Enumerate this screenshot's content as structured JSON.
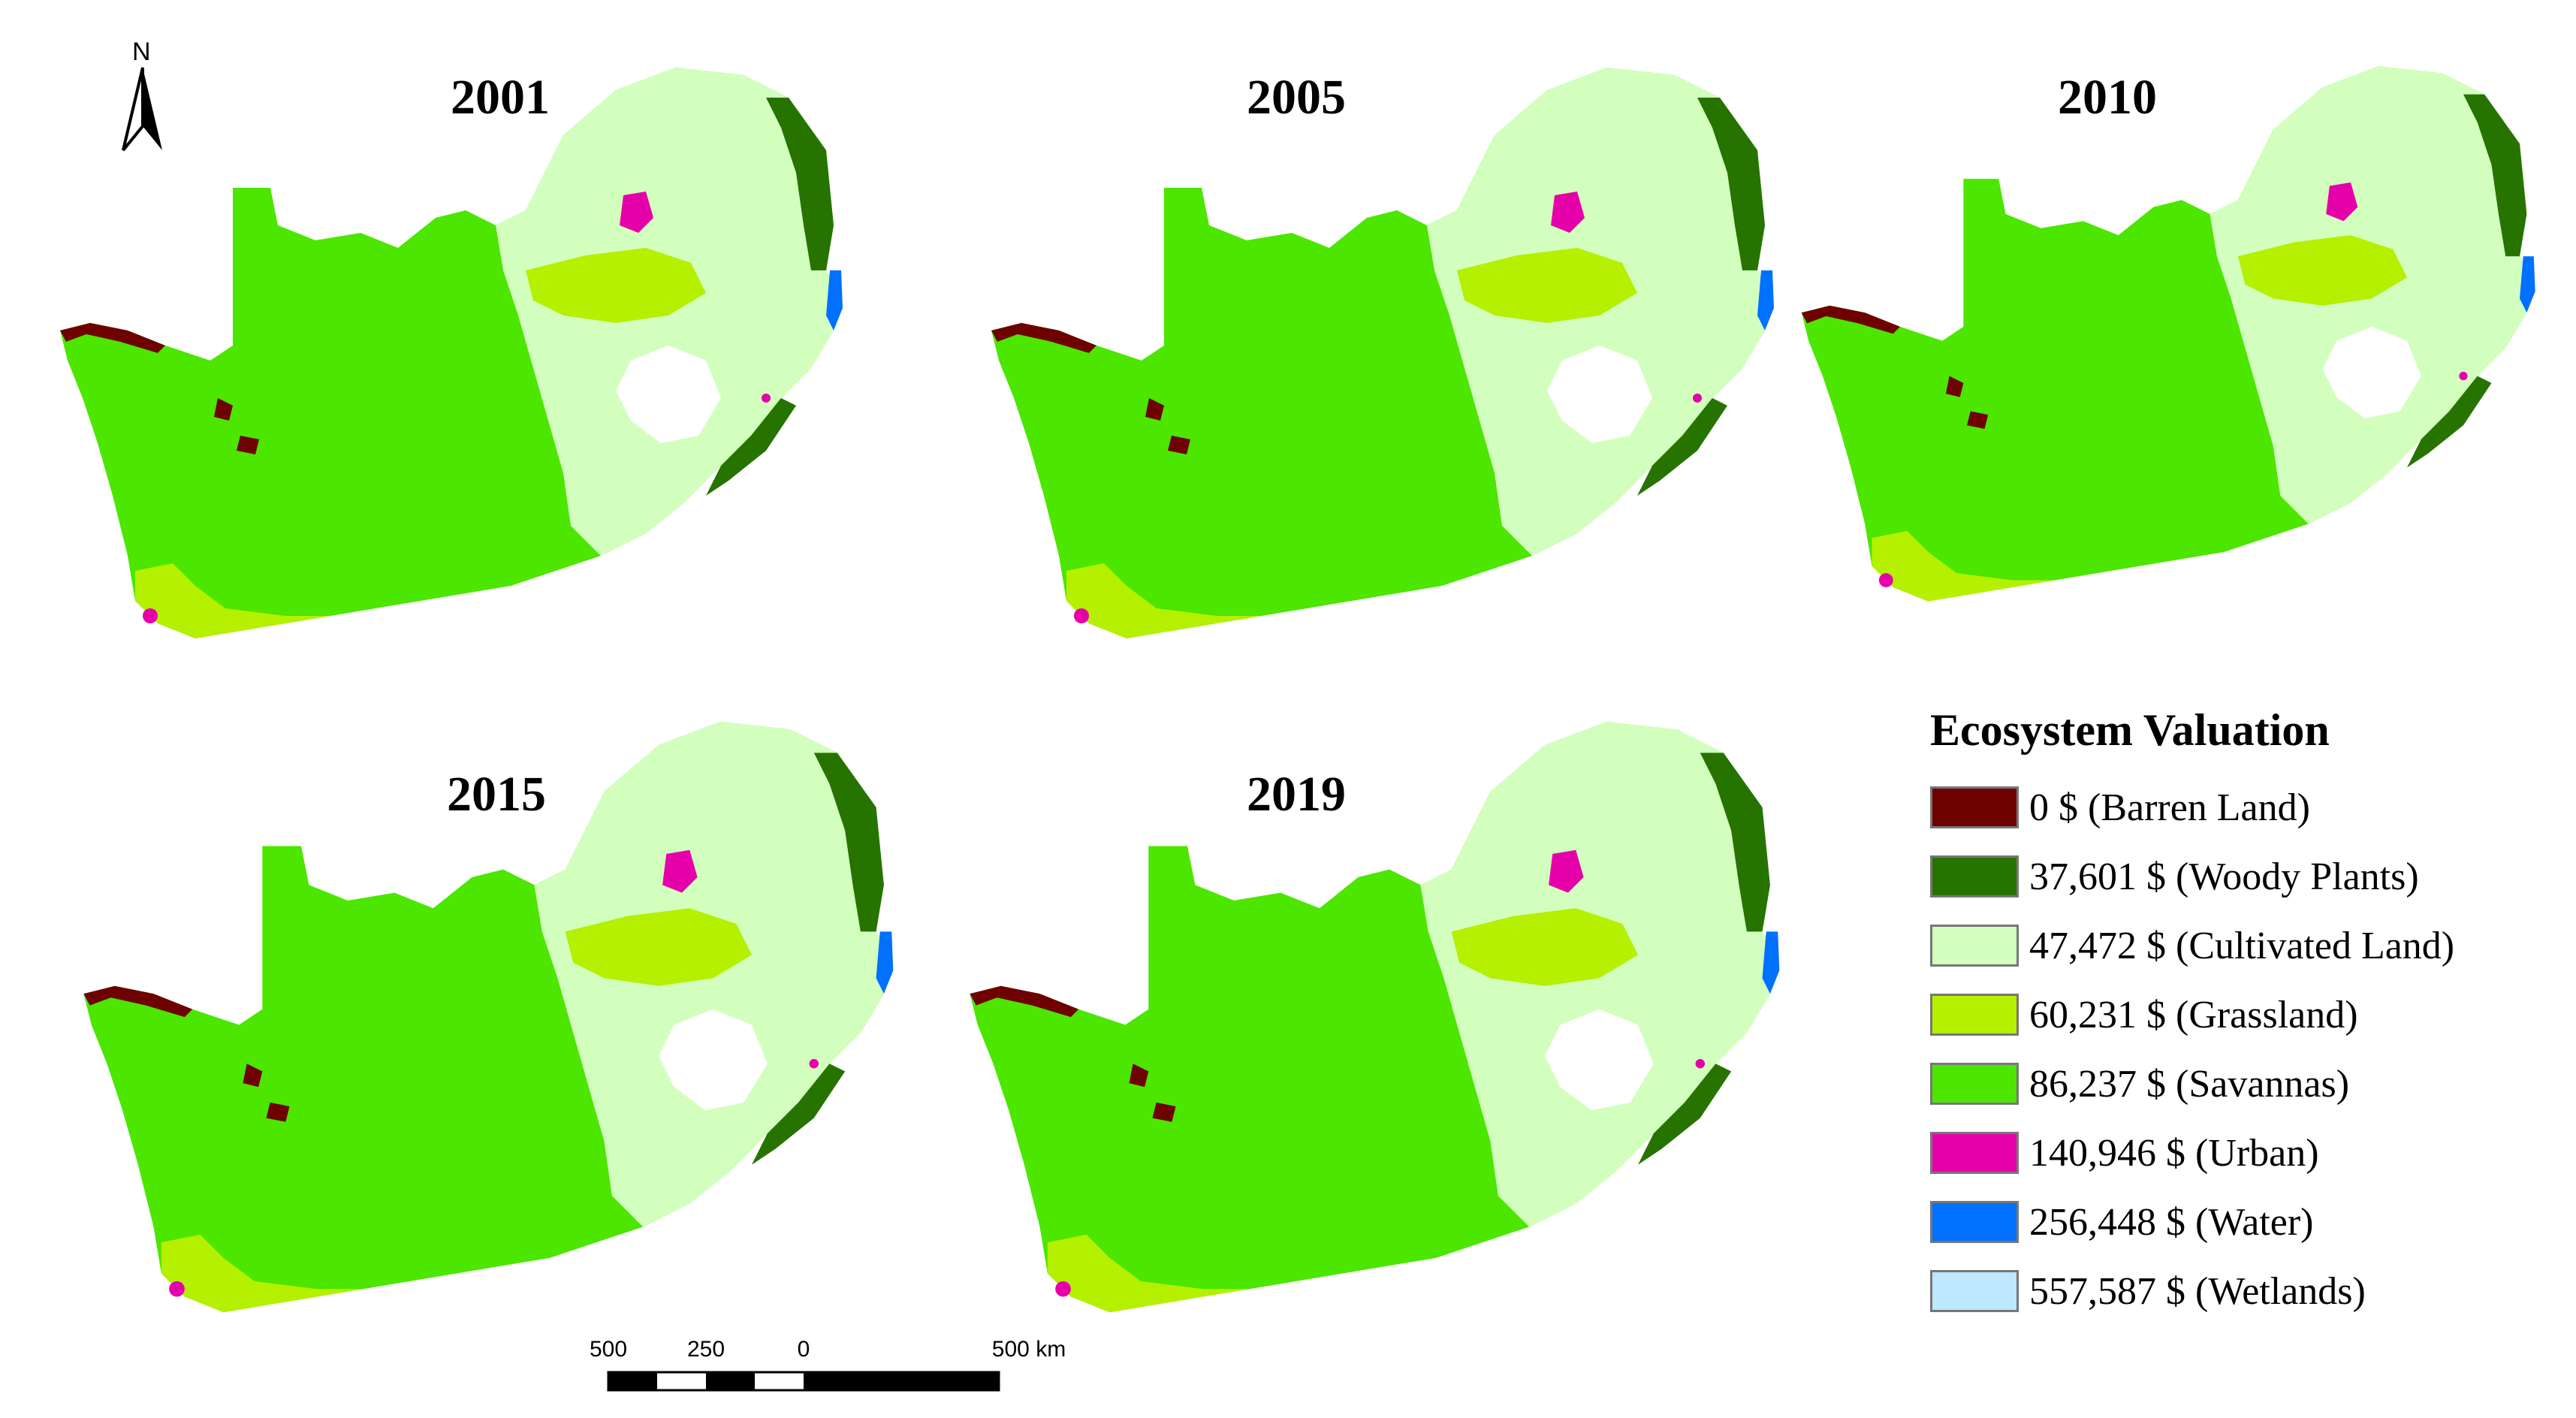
{
  "north": {
    "letter": "N",
    "icon": "north-arrow-icon"
  },
  "maps": [
    {
      "year": "2001"
    },
    {
      "year": "2005"
    },
    {
      "year": "2010"
    },
    {
      "year": "2015"
    },
    {
      "year": "2019"
    }
  ],
  "legend": {
    "title": "Ecosystem Valuation",
    "items": [
      {
        "label": "0 $ (Barren Land)",
        "color": "#6e0000"
      },
      {
        "label": "37,601 $ (Woody Plants)",
        "color": "#267300"
      },
      {
        "label": "47,472 $ (Cultivated Land)",
        "color": "#d3ffbe"
      },
      {
        "label": "60,231 $ (Grassland)",
        "color": "#b4f000"
      },
      {
        "label": "86,237 $ (Savannas)",
        "color": "#4ce600"
      },
      {
        "label": "140,946 $ (Urban)",
        "color": "#e600a9"
      },
      {
        "label": "256,448 $ (Water)",
        "color": "#0070ff"
      },
      {
        "label": "557,587 $ (Wetlands)",
        "color": "#bee8ff"
      }
    ]
  },
  "scale_bar": {
    "labels": [
      "500",
      "250",
      "0",
      "500 km"
    ]
  }
}
